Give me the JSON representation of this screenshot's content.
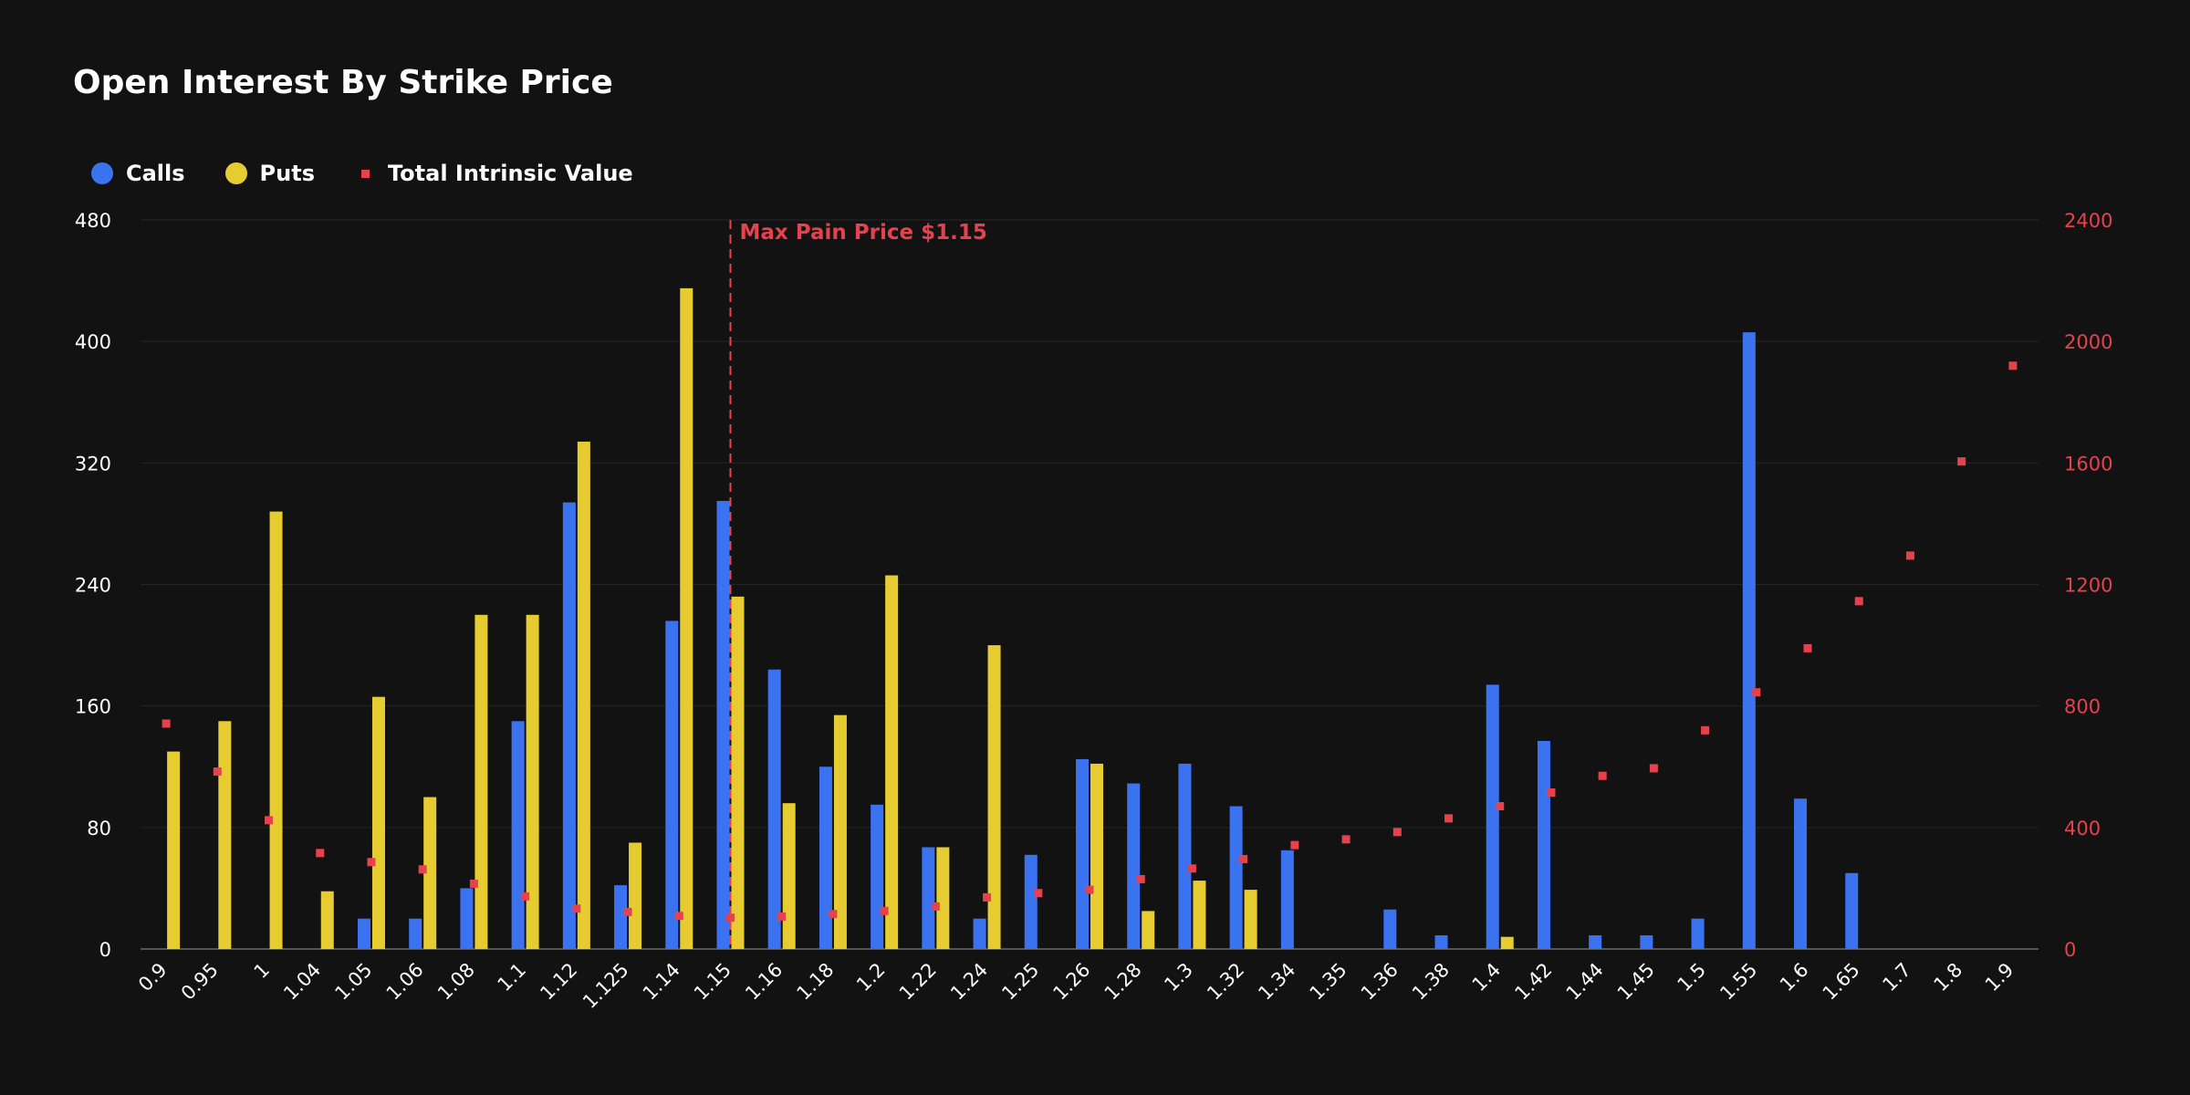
{
  "chart_data": {
    "type": "bar",
    "title": "Open Interest By Strike Price",
    "categories": [
      "0.9",
      "0.95",
      "1",
      "1.04",
      "1.05",
      "1.06",
      "1.08",
      "1.1",
      "1.12",
      "1.125",
      "1.14",
      "1.15",
      "1.16",
      "1.18",
      "1.2",
      "1.22",
      "1.24",
      "1.25",
      "1.26",
      "1.28",
      "1.3",
      "1.32",
      "1.34",
      "1.35",
      "1.36",
      "1.38",
      "1.4",
      "1.42",
      "1.44",
      "1.45",
      "1.5",
      "1.55",
      "1.6",
      "1.65",
      "1.7",
      "1.8",
      "1.9"
    ],
    "series": [
      {
        "name": "Calls",
        "kind": "bar",
        "axis": "left",
        "color": "#3b72f0",
        "values": [
          0,
          0,
          0,
          0,
          20,
          20,
          40,
          150,
          294,
          42,
          216,
          295,
          184,
          120,
          95,
          67,
          20,
          62,
          125,
          109,
          122,
          94,
          65,
          0,
          26,
          9,
          174,
          137,
          9,
          9,
          20,
          406,
          99,
          50,
          0,
          0,
          0
        ]
      },
      {
        "name": "Puts",
        "kind": "bar",
        "axis": "left",
        "color": "#e6cc30",
        "values": [
          130,
          150,
          288,
          38,
          166,
          100,
          220,
          220,
          334,
          70,
          435,
          232,
          96,
          154,
          246,
          67,
          200,
          0,
          122,
          25,
          45,
          39,
          0,
          0,
          0,
          0,
          8,
          0,
          0,
          0,
          0,
          0,
          0,
          0,
          0,
          0,
          0
        ]
      },
      {
        "name": "Total Intrinsic Value",
        "kind": "scatter",
        "axis": "right",
        "color": "#e5424d",
        "values": [
          742,
          584,
          424,
          316,
          286,
          262,
          215,
          173,
          133,
          122,
          109,
          103,
          107,
          115,
          125,
          140,
          170,
          184,
          195,
          230,
          265,
          296,
          342,
          361,
          385,
          430,
          470,
          515,
          570,
          595,
          720,
          845,
          990,
          1145,
          1295,
          1605,
          1920
        ]
      }
    ],
    "y_left": {
      "min": 0,
      "max": 480,
      "ticks": [
        "0",
        "80",
        "160",
        "240",
        "320",
        "400",
        "480"
      ]
    },
    "y_right": {
      "min": 0,
      "max": 2400,
      "ticks": [
        "0",
        "400",
        "800",
        "1200",
        "1600",
        "2000",
        "2400"
      ]
    },
    "annotation": {
      "label": "Max Pain Price $1.15",
      "category": "1.15",
      "color": "#e5424d"
    },
    "grid": true,
    "legend_position": "top-left"
  }
}
